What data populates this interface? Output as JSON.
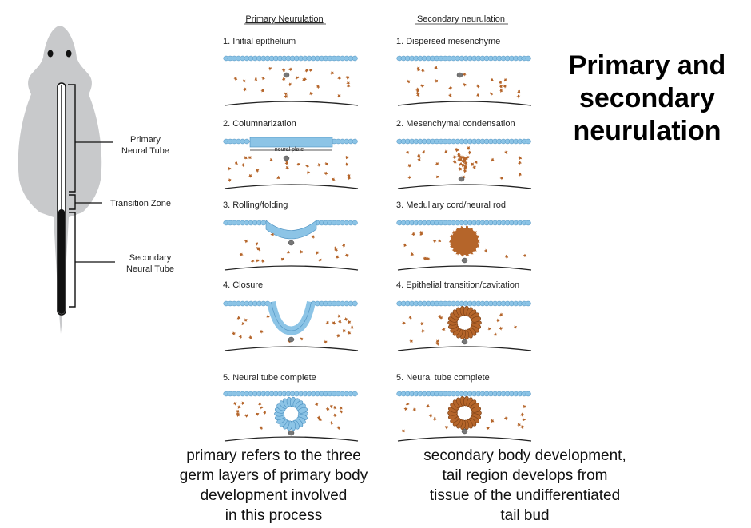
{
  "title": {
    "line1": "Primary and",
    "line2": "secondary",
    "line3": "neurulation"
  },
  "mouse": {
    "primary_label_line1": "Primary",
    "primary_label_line2": "Neural Tube",
    "transition_label": "Transition Zone",
    "secondary_label_line1": "Secondary",
    "secondary_label_line2": "Neural Tube"
  },
  "primary_column": {
    "heading": "Primary Neurulation",
    "steps": [
      "1.  Initial epithelium",
      "2.  Columnarization",
      "3.  Rolling/folding",
      "4.  Closure",
      "5.  Neural tube complete"
    ],
    "neural_plate_label": "neural plate"
  },
  "secondary_column": {
    "heading": "Secondary neurulation",
    "steps": [
      "1.  Dispersed mesenchyme",
      "2.  Mesenchymal condensation",
      "3.  Medullary cord/neural rod",
      "4.  Epithelial transition/cavitation",
      "5.  Neural tube complete"
    ]
  },
  "captions": {
    "left": [
      "primary refers to the three",
      "germ layers of primary body",
      "development involved",
      "in this process"
    ],
    "right": [
      "secondary body development,",
      "tail region develops from",
      "tissue of the undifferentiated",
      "tail bud"
    ]
  },
  "colors": {
    "epithelium": "#8cc4e6",
    "epithelium_stroke": "#4a8fbf",
    "mesenchyme": "#b5652a",
    "mouse_body": "#c8c9cb"
  }
}
